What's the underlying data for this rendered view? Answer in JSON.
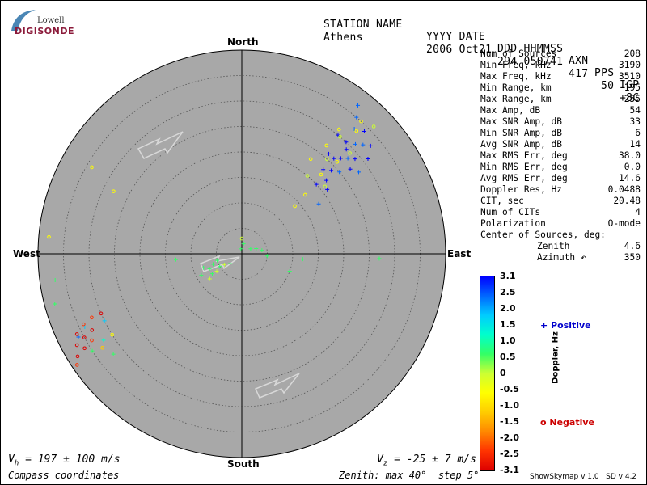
{
  "logo": {
    "line1": "Lowell",
    "line2": "DIGISONDE"
  },
  "header": {
    "labels": [
      "STATION NAME",
      "YYYY DATE",
      "DDD HHMMSS",
      "AXN",
      "PPS",
      "IGP"
    ],
    "values": [
      "Athens",
      "2006 Oct21",
      "294 050741",
      "417",
      "50",
      "+8C"
    ]
  },
  "compass": {
    "north": "North",
    "south": "South",
    "east": "East",
    "west": "West"
  },
  "stats": [
    {
      "label": "Num of Sources",
      "value": "208"
    },
    {
      "label": "Min Freq, kHz",
      "value": "3190"
    },
    {
      "label": "Max Freq, kHz",
      "value": "3510"
    },
    {
      "label": "Min Range, km",
      "value": "195"
    },
    {
      "label": "Max Range, km",
      "value": "255"
    },
    {
      "label": "Max Amp, dB",
      "value": "54"
    },
    {
      "label": "Max SNR Amp, dB",
      "value": "33"
    },
    {
      "label": "Min SNR Amp, dB",
      "value": "6"
    },
    {
      "label": "Avg SNR Amp, dB",
      "value": "14"
    },
    {
      "label": "Max RMS Err, deg",
      "value": "38.0"
    },
    {
      "label": "Min RMS Err, deg",
      "value": "0.0"
    },
    {
      "label": "Avg RMS Err, deg",
      "value": "14.6"
    },
    {
      "label": "Doppler Res, Hz",
      "value": "0.0488"
    },
    {
      "label": "CIT, sec",
      "value": "20.48"
    },
    {
      "label": "Num of CITs",
      "value": "4"
    },
    {
      "label": "Polarization",
      "value": "O-mode"
    },
    {
      "label": "Center of Sources, deg:",
      "value": ""
    },
    {
      "label": "Zenith",
      "value": "4.6",
      "sub": true
    },
    {
      "label": "Azimuth ↶",
      "value": "350",
      "sub": true
    }
  ],
  "colorbar": {
    "label": "Doppler, Hz",
    "ticks": [
      "3.1",
      "2.5",
      "2.0",
      "1.5",
      "1.0",
      "0.5",
      "0",
      "-0.5",
      "-1.0",
      "-1.5",
      "-2.0",
      "-2.5",
      "-3.1"
    ],
    "gradient": [
      "#0000ff",
      "#0066ff",
      "#00ccff",
      "#00ffcc",
      "#33ff66",
      "#ccff33",
      "#ffff00",
      "#ffcc00",
      "#ff8800",
      "#ff3300",
      "#dd0000"
    ]
  },
  "legend": {
    "positive": "+ Positive",
    "negative": "o Negative"
  },
  "bottom": {
    "vh": "V",
    "vh_sub": "h",
    "vh_value": " = 197 ± 100 m/s",
    "vz": "V",
    "vz_sub": "z",
    "vz_value": " = -25 ± 7 m/s",
    "coords": "Compass coordinates",
    "zenith": "Zenith: max 40°  step 5°",
    "version": "ShowSkymap v 1.0   SD v 4.2"
  },
  "colors": {
    "disk": "#a8a8a8",
    "positive": "#0000cc",
    "negative": "#cc0000"
  },
  "chart_data": {
    "type": "scatter",
    "projection": "polar sky map",
    "zenith_max_deg": 40,
    "zenith_step_deg": 5,
    "series": [
      {
        "name": "Positive",
        "marker": "+",
        "points": [
          {
            "zenith": 29,
            "azimuth": 45,
            "doppler": 2.8
          },
          {
            "zenith": 27,
            "azimuth": 46,
            "doppler": 2.9
          },
          {
            "zenith": 31,
            "azimuth": 46,
            "doppler": 2.7
          },
          {
            "zenith": 28,
            "azimuth": 48,
            "doppler": 2.6
          },
          {
            "zenith": 26,
            "azimuth": 44,
            "doppler": 3.0
          },
          {
            "zenith": 30,
            "azimuth": 43,
            "doppler": 2.8
          },
          {
            "zenith": 25,
            "azimuth": 50,
            "doppler": 2.7
          },
          {
            "zenith": 24,
            "azimuth": 47,
            "doppler": 2.9
          },
          {
            "zenith": 29,
            "azimuth": 50,
            "doppler": 3.0
          },
          {
            "zenith": 32,
            "azimuth": 48,
            "doppler": 2.6
          },
          {
            "zenith": 22,
            "azimuth": 49,
            "doppler": 2.8
          },
          {
            "zenith": 33,
            "azimuth": 42,
            "doppler": 2.5
          },
          {
            "zenith": 20,
            "azimuth": 47,
            "doppler": 2.9
          },
          {
            "zenith": 35,
            "azimuth": 40,
            "doppler": 2.7
          },
          {
            "zenith": 27,
            "azimuth": 52,
            "doppler": 2.9
          },
          {
            "zenith": 23,
            "azimuth": 44,
            "doppler": 2.8
          },
          {
            "zenith": 18,
            "azimuth": 57,
            "doppler": 2.6
          },
          {
            "zenith": 34,
            "azimuth": 45,
            "doppler": 2.8
          },
          {
            "zenith": 37,
            "azimuth": 38,
            "doppler": 2.6
          },
          {
            "zenith": 31,
            "azimuth": 53,
            "doppler": 2.9
          },
          {
            "zenith": 28,
            "azimuth": 55,
            "doppler": 2.7
          },
          {
            "zenith": 26,
            "azimuth": 41,
            "doppler": 2.8
          },
          {
            "zenith": 30,
            "azimuth": 39,
            "doppler": 2.8
          },
          {
            "zenith": 21,
            "azimuth": 53,
            "doppler": 2.9
          },
          {
            "zenith": 33,
            "azimuth": 50,
            "doppler": 2.9
          },
          {
            "zenith": 36,
            "azimuth": 243,
            "doppler": 2.2
          },
          {
            "zenith": 34,
            "azimuth": 245,
            "doppler": 2.0
          },
          {
            "zenith": 30,
            "azimuth": 244,
            "doppler": 1.8
          },
          {
            "zenith": 32,
            "azimuth": 238,
            "doppler": 1.5
          },
          {
            "zenith": 8,
            "azimuth": 250,
            "doppler": 0.4
          },
          {
            "zenith": 6,
            "azimuth": 235,
            "doppler": 0.3
          },
          {
            "zenith": 7,
            "azimuth": 245,
            "doppler": 0.5
          },
          {
            "zenith": 5,
            "azimuth": 240,
            "doppler": 0.6
          },
          {
            "zenith": 9,
            "azimuth": 242,
            "doppler": 0.4
          },
          {
            "zenith": 4,
            "azimuth": 238,
            "doppler": 0.3
          },
          {
            "zenith": 6,
            "azimuth": 250,
            "doppler": 0.5
          },
          {
            "zenith": 3,
            "azimuth": 230,
            "doppler": 0.6
          },
          {
            "zenith": 7,
            "azimuth": 236,
            "doppler": 0.4
          },
          {
            "zenith": 5,
            "azimuth": 255,
            "doppler": 0.5
          },
          {
            "zenith": 8,
            "azimuth": 232,
            "doppler": 0.3
          },
          {
            "zenith": 2,
            "azimuth": 60,
            "doppler": 0.5
          },
          {
            "zenith": 3,
            "azimuth": 70,
            "doppler": 0.6
          },
          {
            "zenith": 4,
            "azimuth": 80,
            "doppler": 0.5
          },
          {
            "zenith": 5,
            "azimuth": 95,
            "doppler": 0.4
          },
          {
            "zenith": 2,
            "azimuth": 10,
            "doppler": 0.7
          },
          {
            "zenith": 1,
            "azimuth": 350,
            "doppler": 0.8
          },
          {
            "zenith": 10,
            "azimuth": 110,
            "doppler": 0.6
          },
          {
            "zenith": 12,
            "azimuth": 95,
            "doppler": 0.7
          },
          {
            "zenith": 27,
            "azimuth": 92,
            "doppler": 0.6
          },
          {
            "zenith": 13,
            "azimuth": 265,
            "doppler": 0.5
          },
          {
            "zenith": 37,
            "azimuth": 262,
            "doppler": 0.7
          },
          {
            "zenith": 38,
            "azimuth": 255,
            "doppler": 0.6
          },
          {
            "zenith": 32,
            "azimuth": 232,
            "doppler": 0.6
          },
          {
            "zenith": 35,
            "azimuth": 237,
            "doppler": 0.8
          }
        ]
      },
      {
        "name": "Negative",
        "marker": "o",
        "points": [
          {
            "zenith": 30,
            "azimuth": 40,
            "doppler": -0.3
          },
          {
            "zenith": 27,
            "azimuth": 38,
            "doppler": -0.4
          },
          {
            "zenith": 33,
            "azimuth": 43,
            "doppler": -0.5
          },
          {
            "zenith": 25,
            "azimuth": 42,
            "doppler": -0.3
          },
          {
            "zenith": 35,
            "azimuth": 42,
            "doppler": -0.4
          },
          {
            "zenith": 22,
            "azimuth": 45,
            "doppler": -0.6
          },
          {
            "zenith": 20,
            "azimuth": 40,
            "doppler": -0.3
          },
          {
            "zenith": 17,
            "azimuth": 47,
            "doppler": -0.5
          },
          {
            "zenith": 29,
            "azimuth": 47,
            "doppler": -0.2
          },
          {
            "zenith": 31,
            "azimuth": 38,
            "doppler": -0.4
          },
          {
            "zenith": 23,
            "azimuth": 36,
            "doppler": -0.4
          },
          {
            "zenith": 36,
            "azimuth": 46,
            "doppler": -0.3
          },
          {
            "zenith": 14,
            "azimuth": 48,
            "doppler": -0.7
          },
          {
            "zenith": 26,
            "azimuth": 46,
            "doppler": -0.5
          },
          {
            "zenith": 21,
            "azimuth": 51,
            "doppler": -0.3
          },
          {
            "zenith": 36,
            "azimuth": 244,
            "doppler": -2.8
          },
          {
            "zenith": 35,
            "azimuth": 242,
            "doppler": -3.0
          },
          {
            "zenith": 34,
            "azimuth": 246,
            "doppler": -2.7
          },
          {
            "zenith": 33,
            "azimuth": 243,
            "doppler": -2.9
          },
          {
            "zenith": 37,
            "azimuth": 241,
            "doppler": -2.8
          },
          {
            "zenith": 38,
            "azimuth": 238,
            "doppler": -3.0
          },
          {
            "zenith": 32,
            "azimuth": 247,
            "doppler": -2.6
          },
          {
            "zenith": 36,
            "azimuth": 239,
            "doppler": -2.9
          },
          {
            "zenith": 34,
            "azimuth": 240,
            "doppler": -2.7
          },
          {
            "zenith": 30,
            "azimuth": 247,
            "doppler": -2.8
          },
          {
            "zenith": 39,
            "azimuth": 236,
            "doppler": -2.6
          },
          {
            "zenith": 33,
            "azimuth": 236,
            "doppler": -1.2
          },
          {
            "zenith": 30,
            "azimuth": 238,
            "doppler": -0.8
          },
          {
            "zenith": 34,
            "azimuth": 300,
            "doppler": -0.4
          },
          {
            "zenith": 28,
            "azimuth": 296,
            "doppler": -0.5
          },
          {
            "zenith": 38,
            "azimuth": 275,
            "doppler": -0.4
          },
          {
            "zenith": 3,
            "azimuth": 0,
            "doppler": -0.3
          }
        ]
      }
    ],
    "center_of_sources": {
      "zenith": 4.6,
      "azimuth": 350
    }
  }
}
